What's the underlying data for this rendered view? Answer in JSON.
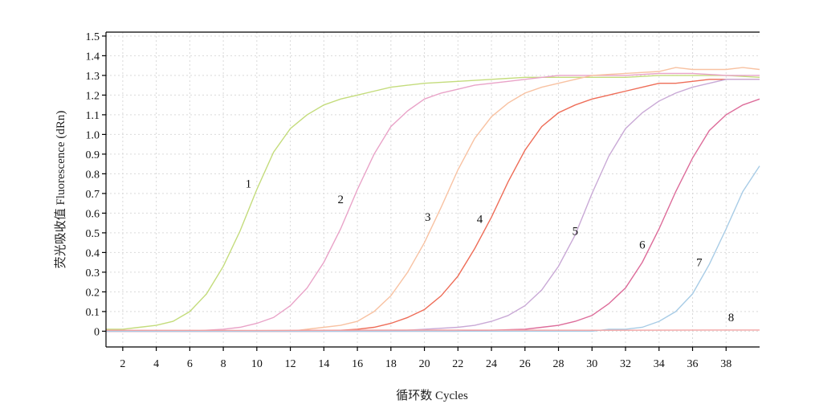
{
  "chart_data": {
    "type": "line",
    "xlabel": "循环数 Cycles",
    "ylabel": "荧光吸收值 Fluorescence (dRn)",
    "xlim": [
      1,
      40
    ],
    "ylim": [
      -0.08,
      1.52
    ],
    "x_ticks": [
      2,
      4,
      6,
      8,
      10,
      12,
      14,
      16,
      18,
      20,
      22,
      24,
      26,
      28,
      30,
      32,
      34,
      36,
      38
    ],
    "y_ticks": [
      0,
      0.1,
      0.2,
      0.3,
      0.4,
      0.5,
      0.6,
      0.7,
      0.8,
      0.9,
      1.0,
      1.1,
      1.2,
      1.3,
      1.4,
      1.5
    ],
    "y_tick_labels": [
      "0",
      "0.1",
      "0.2",
      "0.3",
      "0.4",
      "0.5",
      "0.6",
      "0.7",
      "0.8",
      "0.9",
      "1.0",
      "1.1",
      "1.2",
      "1.3",
      "1.4",
      "1.5"
    ],
    "grid": true,
    "series": [
      {
        "name": "1",
        "color": "#c4dc7c",
        "label_at": [
          9.5,
          0.73
        ],
        "points": [
          [
            1,
            0.01
          ],
          [
            2,
            0.01
          ],
          [
            3,
            0.02
          ],
          [
            4,
            0.03
          ],
          [
            5,
            0.05
          ],
          [
            6,
            0.1
          ],
          [
            7,
            0.19
          ],
          [
            8,
            0.33
          ],
          [
            9,
            0.51
          ],
          [
            10,
            0.72
          ],
          [
            11,
            0.91
          ],
          [
            12,
            1.03
          ],
          [
            13,
            1.1
          ],
          [
            14,
            1.15
          ],
          [
            15,
            1.18
          ],
          [
            16,
            1.2
          ],
          [
            17,
            1.22
          ],
          [
            18,
            1.24
          ],
          [
            19,
            1.25
          ],
          [
            20,
            1.26
          ],
          [
            22,
            1.27
          ],
          [
            24,
            1.28
          ],
          [
            26,
            1.29
          ],
          [
            28,
            1.29
          ],
          [
            30,
            1.29
          ],
          [
            32,
            1.29
          ],
          [
            34,
            1.3
          ],
          [
            36,
            1.3
          ],
          [
            38,
            1.3
          ],
          [
            40,
            1.29
          ]
        ]
      },
      {
        "name": "2",
        "color": "#e9a3c8",
        "label_at": [
          15,
          0.65
        ],
        "points": [
          [
            1,
            0.0
          ],
          [
            6,
            0.0
          ],
          [
            8,
            0.01
          ],
          [
            9,
            0.02
          ],
          [
            10,
            0.04
          ],
          [
            11,
            0.07
          ],
          [
            12,
            0.13
          ],
          [
            13,
            0.22
          ],
          [
            14,
            0.35
          ],
          [
            15,
            0.52
          ],
          [
            16,
            0.72
          ],
          [
            17,
            0.9
          ],
          [
            18,
            1.04
          ],
          [
            19,
            1.12
          ],
          [
            20,
            1.18
          ],
          [
            21,
            1.21
          ],
          [
            22,
            1.23
          ],
          [
            23,
            1.25
          ],
          [
            24,
            1.26
          ],
          [
            25,
            1.27
          ],
          [
            26,
            1.28
          ],
          [
            28,
            1.3
          ],
          [
            30,
            1.3
          ],
          [
            32,
            1.3
          ],
          [
            34,
            1.31
          ],
          [
            36,
            1.31
          ],
          [
            38,
            1.3
          ],
          [
            40,
            1.3
          ]
        ]
      },
      {
        "name": "3",
        "color": "#f8c2a2",
        "label_at": [
          20.2,
          0.56
        ],
        "points": [
          [
            1,
            0.0
          ],
          [
            12,
            0.0
          ],
          [
            14,
            0.02
          ],
          [
            15,
            0.03
          ],
          [
            16,
            0.05
          ],
          [
            17,
            0.1
          ],
          [
            18,
            0.18
          ],
          [
            19,
            0.3
          ],
          [
            20,
            0.45
          ],
          [
            21,
            0.63
          ],
          [
            22,
            0.82
          ],
          [
            23,
            0.98
          ],
          [
            24,
            1.09
          ],
          [
            25,
            1.16
          ],
          [
            26,
            1.21
          ],
          [
            27,
            1.24
          ],
          [
            28,
            1.26
          ],
          [
            29,
            1.28
          ],
          [
            30,
            1.3
          ],
          [
            32,
            1.31
          ],
          [
            34,
            1.32
          ],
          [
            35,
            1.34
          ],
          [
            36,
            1.33
          ],
          [
            38,
            1.33
          ],
          [
            39,
            1.34
          ],
          [
            40,
            1.33
          ]
        ]
      },
      {
        "name": "4",
        "color": "#ee6d58",
        "label_at": [
          23.3,
          0.55
        ],
        "points": [
          [
            1,
            0.0
          ],
          [
            14,
            0.0
          ],
          [
            16,
            0.01
          ],
          [
            17,
            0.02
          ],
          [
            18,
            0.04
          ],
          [
            19,
            0.07
          ],
          [
            20,
            0.11
          ],
          [
            21,
            0.18
          ],
          [
            22,
            0.28
          ],
          [
            23,
            0.42
          ],
          [
            24,
            0.58
          ],
          [
            25,
            0.76
          ],
          [
            26,
            0.92
          ],
          [
            27,
            1.04
          ],
          [
            28,
            1.11
          ],
          [
            29,
            1.15
          ],
          [
            30,
            1.18
          ],
          [
            31,
            1.2
          ],
          [
            32,
            1.22
          ],
          [
            33,
            1.24
          ],
          [
            34,
            1.26
          ],
          [
            35,
            1.26
          ],
          [
            36,
            1.27
          ],
          [
            37,
            1.28
          ],
          [
            38,
            1.28
          ],
          [
            40,
            1.28
          ]
        ]
      },
      {
        "name": "5",
        "color": "#c9a9d6",
        "label_at": [
          29,
          0.49
        ],
        "points": [
          [
            1,
            0.0
          ],
          [
            18,
            0.0
          ],
          [
            20,
            0.01
          ],
          [
            22,
            0.02
          ],
          [
            23,
            0.03
          ],
          [
            24,
            0.05
          ],
          [
            25,
            0.08
          ],
          [
            26,
            0.13
          ],
          [
            27,
            0.21
          ],
          [
            28,
            0.33
          ],
          [
            29,
            0.49
          ],
          [
            30,
            0.7
          ],
          [
            31,
            0.89
          ],
          [
            32,
            1.03
          ],
          [
            33,
            1.11
          ],
          [
            34,
            1.17
          ],
          [
            35,
            1.21
          ],
          [
            36,
            1.24
          ],
          [
            37,
            1.26
          ],
          [
            38,
            1.28
          ],
          [
            40,
            1.28
          ]
        ]
      },
      {
        "name": "6",
        "color": "#dd6c9a",
        "label_at": [
          33,
          0.42
        ],
        "points": [
          [
            1,
            0.0
          ],
          [
            22,
            0.0
          ],
          [
            26,
            0.01
          ],
          [
            27,
            0.02
          ],
          [
            28,
            0.03
          ],
          [
            29,
            0.05
          ],
          [
            30,
            0.08
          ],
          [
            31,
            0.14
          ],
          [
            32,
            0.22
          ],
          [
            33,
            0.35
          ],
          [
            34,
            0.52
          ],
          [
            35,
            0.71
          ],
          [
            36,
            0.88
          ],
          [
            37,
            1.02
          ],
          [
            38,
            1.1
          ],
          [
            39,
            1.15
          ],
          [
            40,
            1.18
          ]
        ]
      },
      {
        "name": "7",
        "color": "#a8cce6",
        "label_at": [
          36.4,
          0.33
        ],
        "points": [
          [
            1,
            0.0
          ],
          [
            28,
            0.0
          ],
          [
            30,
            0.0
          ],
          [
            31,
            0.01
          ],
          [
            32,
            0.01
          ],
          [
            33,
            0.02
          ],
          [
            34,
            0.05
          ],
          [
            35,
            0.1
          ],
          [
            36,
            0.19
          ],
          [
            37,
            0.34
          ],
          [
            38,
            0.52
          ],
          [
            39,
            0.71
          ],
          [
            40,
            0.84
          ]
        ]
      },
      {
        "name": "8",
        "color": "#f4a3a3",
        "label_at": [
          38.3,
          0.05
        ],
        "points": [
          [
            1,
            0.005
          ],
          [
            10,
            0.004
          ],
          [
            20,
            0.006
          ],
          [
            30,
            0.005
          ],
          [
            40,
            0.006
          ]
        ]
      }
    ]
  }
}
